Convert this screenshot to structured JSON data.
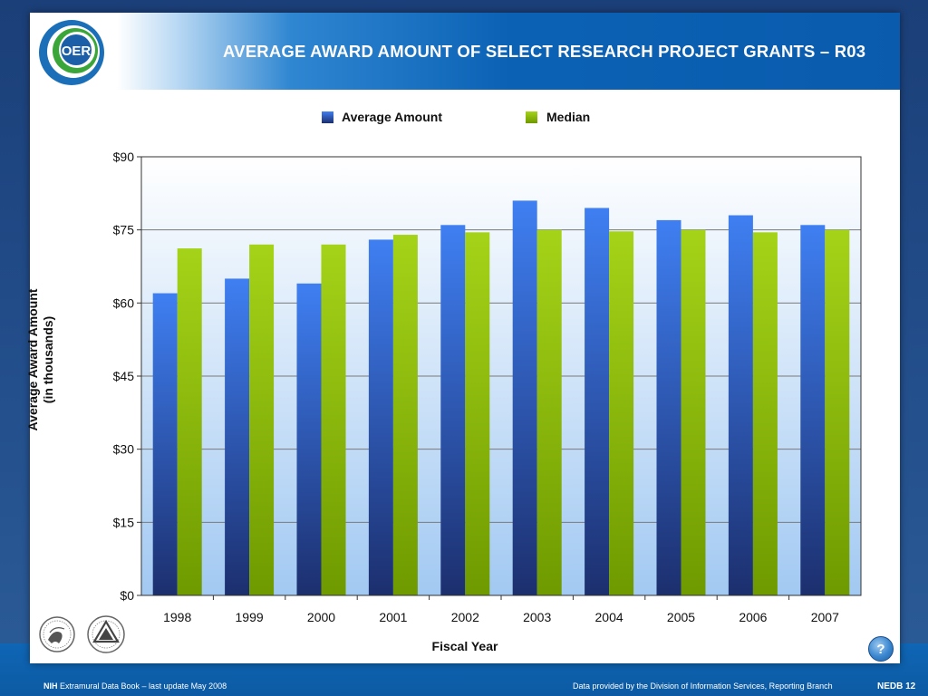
{
  "slide": {
    "title": "AVERAGE AWARD AMOUNT OF SELECT RESEARCH PROJECT GRANTS   –  R03",
    "logo_text": "OER",
    "footer_brand": "NIH",
    "footer_left": "Extramural Data Book – last update May 2008",
    "footer_right": "Data provided by the Division of Information Services, Reporting Branch",
    "page_label": "NEDB 12",
    "help_icon": "?"
  },
  "colors": {
    "average_top": "#3f7ff2",
    "average_bottom": "#1c2f6e",
    "median_top": "#a5d318",
    "median_bottom": "#6f9a00",
    "plot_top": "#ffffff",
    "plot_bottom": "#a2c9f2"
  },
  "chart_data": {
    "type": "bar",
    "title": "AVERAGE AWARD AMOUNT OF SELECT RESEARCH PROJECT GRANTS   –  R03",
    "xlabel": "Fiscal Year",
    "ylabel_lines": [
      "Average Award Amount",
      "(in thousands)"
    ],
    "ylim": [
      0,
      90
    ],
    "yticks": [
      0,
      15,
      30,
      45,
      60,
      75,
      90
    ],
    "ytick_labels": [
      "$0",
      "$15",
      "$30",
      "$45",
      "$60",
      "$75",
      "$90"
    ],
    "grid": true,
    "legend_position": "top",
    "categories": [
      "1998",
      "1999",
      "2000",
      "2001",
      "2002",
      "2003",
      "2004",
      "2005",
      "2006",
      "2007"
    ],
    "series": [
      {
        "name": "Average Amount",
        "values": [
          62,
          65,
          64,
          73,
          76,
          81,
          79.5,
          77,
          78,
          76
        ]
      },
      {
        "name": "Median",
        "values": [
          71.2,
          72,
          72,
          74,
          74.5,
          75,
          74.7,
          75,
          74.5,
          75
        ]
      }
    ]
  }
}
